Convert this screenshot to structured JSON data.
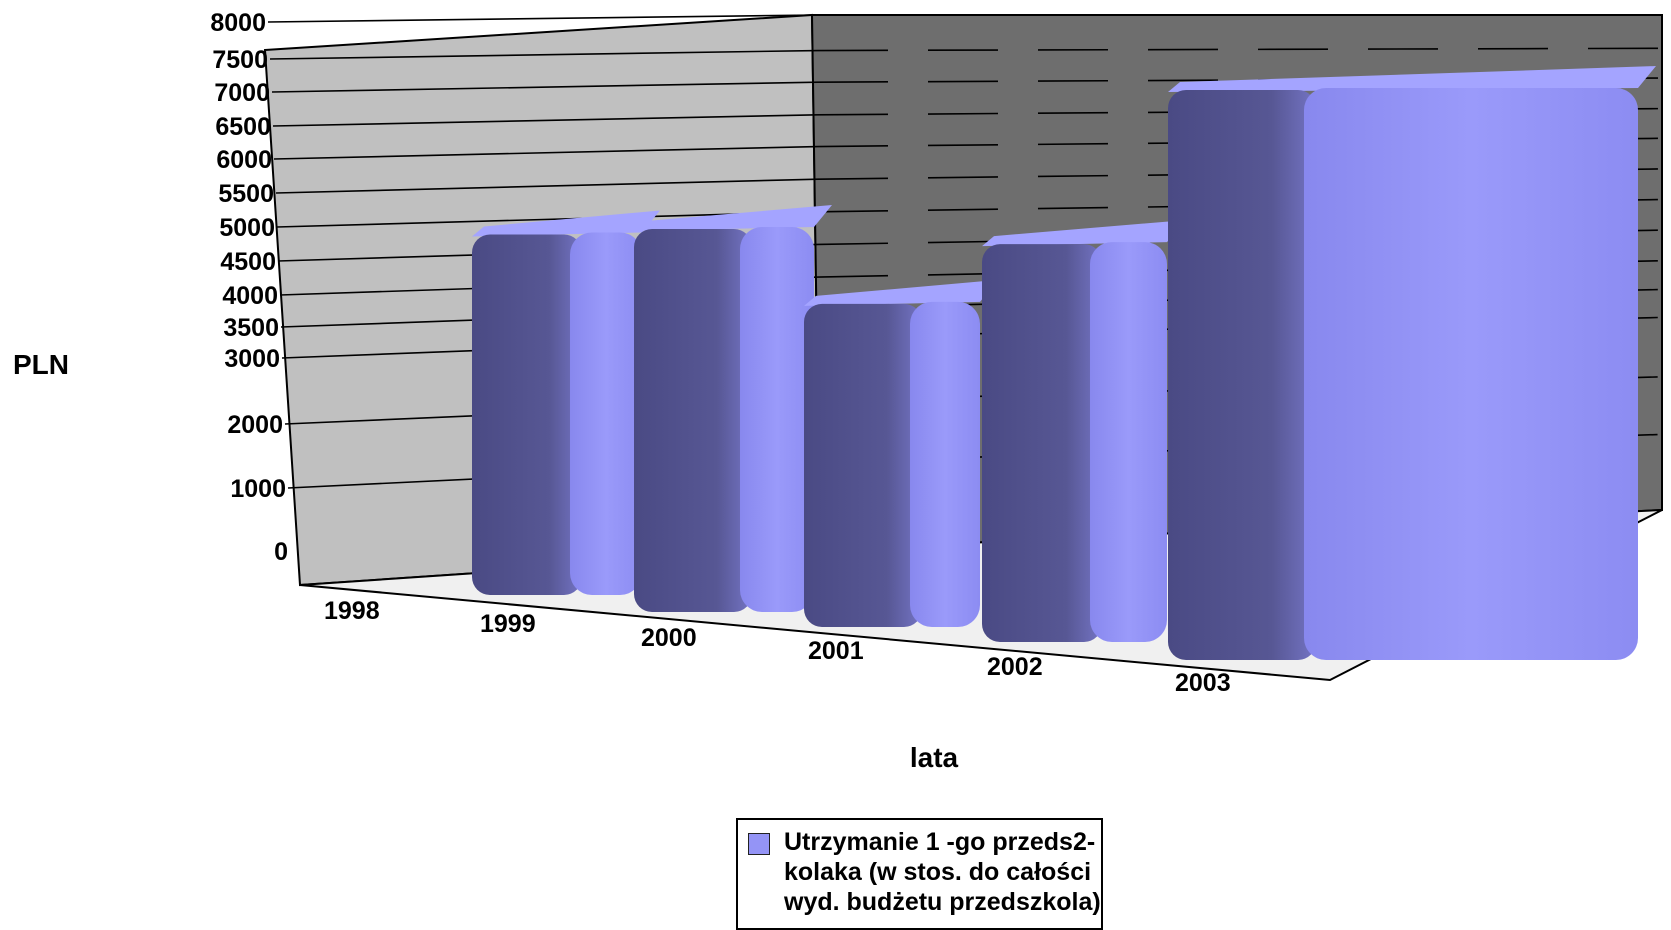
{
  "chart_data": {
    "type": "bar",
    "title": "",
    "ylabel": "PLN",
    "xlabel": "lata",
    "categories": [
      "1998",
      "1999",
      "2000",
      "2001",
      "2002",
      "2003"
    ],
    "series": [
      {
        "name": "Utrzymanie 1 -go przeds2-kolaka (w stos. do całości wyd. budżetu przedszkola)",
        "values": [
          null,
          4900,
          5200,
          4400,
          5400,
          7700
        ]
      }
    ],
    "y_ticks": [
      "0",
      "1000",
      "2000",
      "3000",
      "3500",
      "4000",
      "4500",
      "5000",
      "5500",
      "6000",
      "6500",
      "7000",
      "7500",
      "8000"
    ],
    "ylim": [
      0,
      8000
    ],
    "grid": true,
    "legend_position": "bottom",
    "colors": {
      "bar_front": "#9494F6",
      "bar_dark": "#4E4E88",
      "left_wall": "#C0C0C0",
      "back_wall": "#6E6E6E",
      "floor": "#F0F0F0"
    }
  },
  "legend": {
    "label_lines": [
      "Utrzymanie 1 -go przeds2-",
      "kolaka (w stos. do całości",
      "wyd. budżetu przedszkola)"
    ]
  }
}
